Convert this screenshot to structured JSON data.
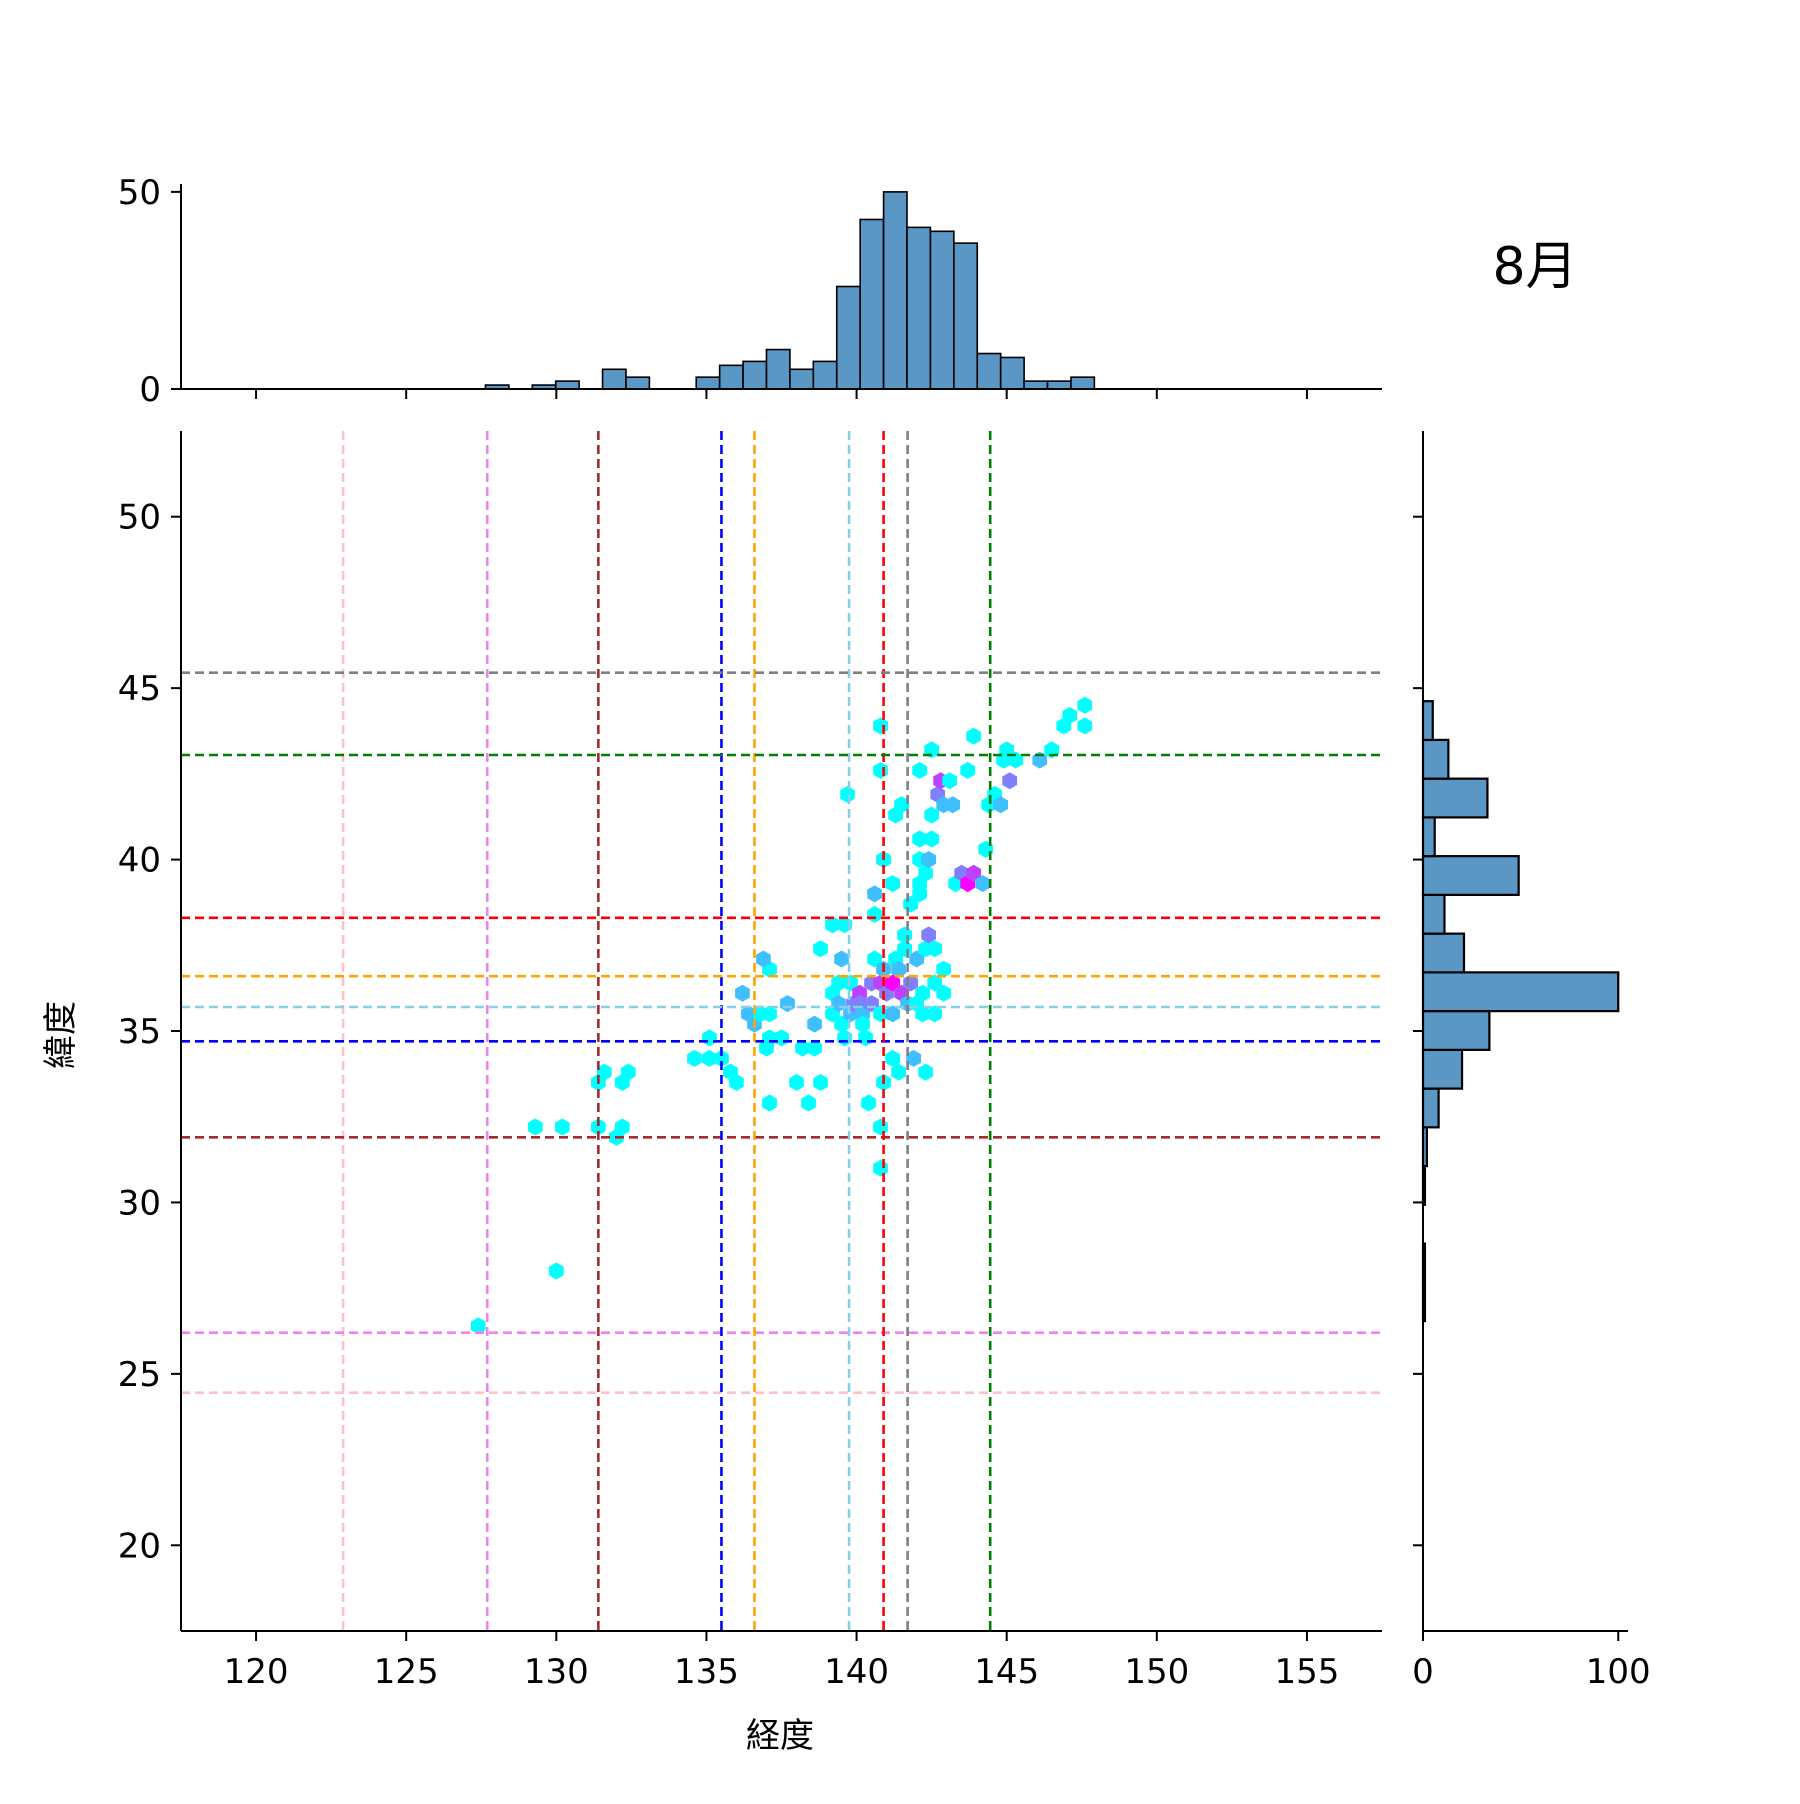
{
  "chart_data": {
    "type": "hexbin",
    "title": "8月",
    "xlabel": "経度",
    "ylabel": "緯度",
    "xlim": [
      117.5,
      157.5
    ],
    "ylim": [
      17.5,
      52.5
    ],
    "x_ticks": [
      120,
      125,
      130,
      135,
      140,
      145,
      150,
      155
    ],
    "y_ticks": [
      20,
      25,
      30,
      35,
      40,
      45,
      50
    ],
    "grid": false,
    "hex_colors": {
      "low": "#00ffff",
      "high": "#ff00ff"
    },
    "hex_points": [
      [
        127.4,
        26.4,
        1
      ],
      [
        130.0,
        28.0,
        1
      ],
      [
        129.3,
        32.2,
        1
      ],
      [
        130.2,
        32.2,
        1
      ],
      [
        131.4,
        32.2,
        1
      ],
      [
        132.0,
        31.9,
        1
      ],
      [
        132.2,
        32.2,
        1
      ],
      [
        131.4,
        33.5,
        1
      ],
      [
        131.6,
        33.8,
        1
      ],
      [
        132.2,
        33.5,
        1
      ],
      [
        132.4,
        33.8,
        1
      ],
      [
        134.6,
        34.2,
        1
      ],
      [
        135.1,
        34.2,
        1
      ],
      [
        135.1,
        34.8,
        1
      ],
      [
        135.5,
        34.2,
        1
      ],
      [
        135.8,
        33.8,
        1
      ],
      [
        136.0,
        33.5,
        1
      ],
      [
        136.2,
        36.1,
        2
      ],
      [
        136.4,
        35.5,
        2
      ],
      [
        136.6,
        35.2,
        2
      ],
      [
        136.8,
        35.5,
        1
      ],
      [
        137.0,
        34.5,
        1
      ],
      [
        137.1,
        34.8,
        1
      ],
      [
        137.1,
        36.8,
        1
      ],
      [
        136.9,
        37.1,
        2
      ],
      [
        137.1,
        32.9,
        1
      ],
      [
        137.1,
        35.5,
        1
      ],
      [
        137.5,
        34.8,
        1
      ],
      [
        137.7,
        35.8,
        2
      ],
      [
        138.0,
        33.5,
        1
      ],
      [
        138.2,
        34.5,
        1
      ],
      [
        138.4,
        32.9,
        1
      ],
      [
        138.6,
        34.5,
        1
      ],
      [
        138.6,
        35.2,
        2
      ],
      [
        138.8,
        33.5,
        1
      ],
      [
        138.8,
        37.4,
        1
      ],
      [
        139.2,
        38.1,
        1
      ],
      [
        139.2,
        36.1,
        1
      ],
      [
        139.2,
        35.5,
        1
      ],
      [
        139.4,
        35.8,
        2
      ],
      [
        139.4,
        36.4,
        1
      ],
      [
        139.5,
        37.1,
        2
      ],
      [
        139.5,
        35.2,
        1
      ],
      [
        139.6,
        38.1,
        1
      ],
      [
        139.6,
        34.8,
        1
      ],
      [
        139.7,
        41.9,
        1
      ],
      [
        139.8,
        36.4,
        1
      ],
      [
        139.8,
        35.5,
        2
      ],
      [
        139.9,
        35.8,
        3
      ],
      [
        140.1,
        36.1,
        4
      ],
      [
        140.1,
        35.8,
        3
      ],
      [
        140.2,
        35.5,
        2
      ],
      [
        140.2,
        35.2,
        1
      ],
      [
        140.3,
        34.8,
        1
      ],
      [
        140.4,
        32.9,
        1
      ],
      [
        140.5,
        36.4,
        3
      ],
      [
        140.5,
        35.8,
        3
      ],
      [
        140.6,
        37.1,
        1
      ],
      [
        140.6,
        38.4,
        1
      ],
      [
        140.6,
        39.0,
        2
      ],
      [
        140.8,
        36.4,
        4
      ],
      [
        140.8,
        35.5,
        1
      ],
      [
        140.8,
        32.2,
        1
      ],
      [
        140.8,
        31.0,
        1
      ],
      [
        140.8,
        43.9,
        1
      ],
      [
        140.8,
        42.6,
        1
      ],
      [
        140.9,
        40.0,
        1
      ],
      [
        140.9,
        36.8,
        2
      ],
      [
        140.9,
        33.5,
        1
      ],
      [
        141.0,
        36.1,
        3
      ],
      [
        141.2,
        36.4,
        5
      ],
      [
        141.2,
        35.5,
        2
      ],
      [
        141.2,
        34.2,
        1
      ],
      [
        141.2,
        39.3,
        1
      ],
      [
        141.3,
        41.3,
        1
      ],
      [
        141.3,
        37.1,
        1
      ],
      [
        141.4,
        36.8,
        2
      ],
      [
        141.4,
        33.8,
        1
      ],
      [
        141.5,
        36.1,
        4
      ],
      [
        141.5,
        41.6,
        1
      ],
      [
        141.6,
        37.8,
        1
      ],
      [
        141.6,
        37.4,
        1
      ],
      [
        141.7,
        35.8,
        2
      ],
      [
        141.8,
        36.4,
        3
      ],
      [
        141.8,
        38.7,
        1
      ],
      [
        141.9,
        34.2,
        2
      ],
      [
        142.0,
        35.8,
        1
      ],
      [
        142.0,
        37.1,
        2
      ],
      [
        142.1,
        39.0,
        1
      ],
      [
        142.1,
        39.3,
        1
      ],
      [
        142.1,
        40.0,
        1
      ],
      [
        142.1,
        40.6,
        1
      ],
      [
        142.1,
        42.6,
        1
      ],
      [
        142.2,
        36.1,
        1
      ],
      [
        142.2,
        35.5,
        1
      ],
      [
        142.3,
        37.4,
        1
      ],
      [
        142.3,
        33.8,
        1
      ],
      [
        142.3,
        39.6,
        1
      ],
      [
        142.4,
        37.8,
        3
      ],
      [
        142.4,
        40.0,
        2
      ],
      [
        142.5,
        40.6,
        1
      ],
      [
        142.5,
        43.2,
        1
      ],
      [
        142.5,
        41.3,
        1
      ],
      [
        142.6,
        36.4,
        1
      ],
      [
        142.6,
        35.5,
        1
      ],
      [
        142.6,
        37.4,
        1
      ],
      [
        142.7,
        41.9,
        3
      ],
      [
        142.8,
        42.3,
        4
      ],
      [
        142.9,
        41.6,
        2
      ],
      [
        142.9,
        36.8,
        1
      ],
      [
        142.9,
        36.1,
        1
      ],
      [
        143.1,
        42.3,
        1
      ],
      [
        143.2,
        41.6,
        2
      ],
      [
        143.3,
        39.3,
        1
      ],
      [
        143.5,
        39.6,
        3
      ],
      [
        143.7,
        39.3,
        5
      ],
      [
        143.7,
        42.6,
        1
      ],
      [
        143.9,
        39.6,
        4
      ],
      [
        143.9,
        43.6,
        1
      ],
      [
        144.2,
        39.3,
        2
      ],
      [
        144.3,
        40.3,
        1
      ],
      [
        144.4,
        41.6,
        1
      ],
      [
        144.6,
        41.9,
        1
      ],
      [
        144.8,
        41.6,
        2
      ],
      [
        144.9,
        42.9,
        1
      ],
      [
        145.0,
        43.2,
        1
      ],
      [
        145.1,
        42.3,
        3
      ],
      [
        145.3,
        42.9,
        1
      ],
      [
        146.1,
        42.9,
        2
      ],
      [
        146.5,
        43.2,
        1
      ],
      [
        146.9,
        43.9,
        1
      ],
      [
        147.1,
        44.2,
        1
      ],
      [
        147.6,
        43.9,
        1
      ],
      [
        147.6,
        44.5,
        1
      ]
    ],
    "lon_hist": {
      "bin_start": 117.5,
      "bin_width": 0.78,
      "ylim": [
        0,
        52
      ],
      "y_ticks": [
        0,
        50
      ],
      "counts": [
        0,
        0,
        0,
        0,
        0,
        0,
        0,
        0,
        0,
        0,
        0,
        0,
        0,
        1,
        0,
        1,
        2,
        0,
        5,
        3,
        0,
        0,
        3,
        6,
        7,
        10,
        5,
        7,
        26,
        43,
        50,
        41,
        40,
        37,
        9,
        8,
        2,
        2,
        3,
        0,
        0,
        0,
        0,
        0,
        0,
        0,
        0,
        0,
        0,
        0,
        0
      ]
    },
    "lat_hist": {
      "bin_start": 17.5,
      "bin_width": 1.13,
      "xlim": [
        0,
        105
      ],
      "x_ticks": [
        0,
        100
      ],
      "counts": [
        0,
        0,
        0,
        0,
        0,
        0,
        0,
        0,
        1,
        1,
        0,
        1,
        2,
        8,
        20,
        34,
        100,
        21,
        11,
        49,
        6,
        33,
        13,
        5,
        0,
        0,
        0,
        0,
        0,
        0,
        0,
        0
      ]
    },
    "reference_lines": [
      {
        "color": "#ffc0cb",
        "lon": 122.9,
        "lat": 24.45
      },
      {
        "color": "#ee82ee",
        "lon": 127.7,
        "lat": 26.2
      },
      {
        "color": "#a52a2a",
        "lon": 131.4,
        "lat": 31.9
      },
      {
        "color": "#0000ff",
        "lon": 135.5,
        "lat": 34.7
      },
      {
        "color": "#ffa500",
        "lon": 136.6,
        "lat": 36.6
      },
      {
        "color": "#87ceeb",
        "lon": 139.75,
        "lat": 35.7
      },
      {
        "color": "#ff0000",
        "lon": 140.9,
        "lat": 38.3
      },
      {
        "color": "#808080",
        "lon": 141.7,
        "lat": 45.45
      },
      {
        "color": "#008000",
        "lon": 144.45,
        "lat": 43.05
      }
    ],
    "bar_color": "#5a97c5"
  }
}
